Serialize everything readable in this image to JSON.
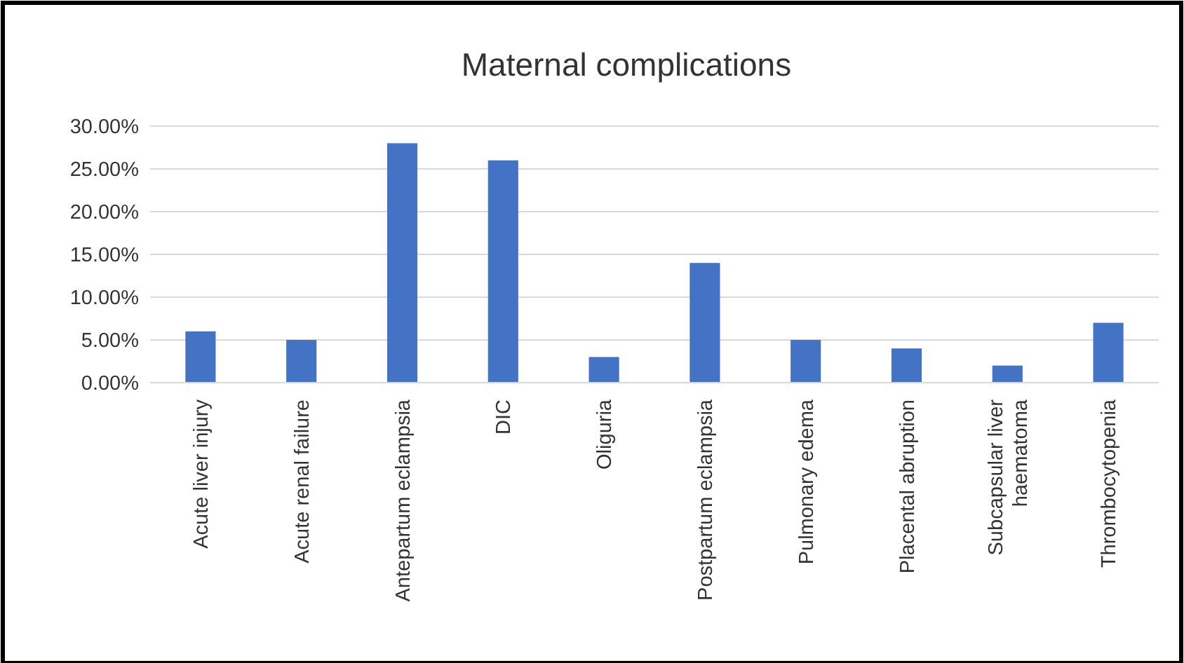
{
  "chart_data": {
    "type": "bar",
    "title": "Maternal complications",
    "categories": [
      "Acute liver injury",
      "Acute renal failure",
      "Antepartum eclampsia",
      "DIC",
      "Oliguria",
      "Postpartum eclampsia",
      "Pulmonary edema",
      "Placental abruption",
      "Subcapsular liver haematoma",
      "Thrombocytopenia"
    ],
    "values": [
      6,
      5,
      28,
      26,
      3,
      14,
      5,
      4,
      2,
      7
    ],
    "color": "#4472c4",
    "ylim": [
      0,
      30
    ],
    "yticks": [
      {
        "value": 0,
        "label": "0.00%"
      },
      {
        "value": 5,
        "label": "5.00%"
      },
      {
        "value": 10,
        "label": "10.00%"
      },
      {
        "value": 15,
        "label": "15.00%"
      },
      {
        "value": 20,
        "label": "20.00%"
      },
      {
        "value": 25,
        "label": "25.00%"
      },
      {
        "value": 30,
        "label": "30.00%"
      }
    ],
    "grid": "y"
  }
}
